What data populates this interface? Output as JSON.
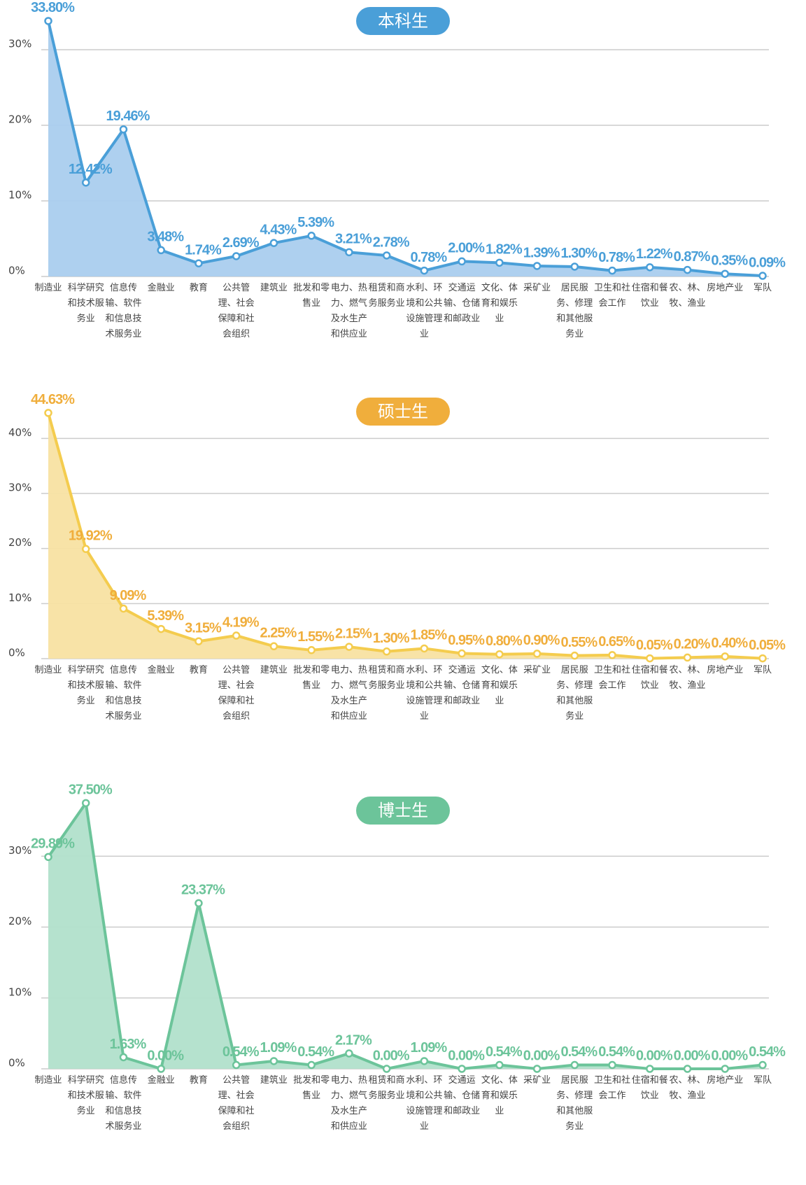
{
  "chart_data": [
    {
      "type": "line",
      "title": "本科生",
      "color": "#4a9fd8",
      "fill": "#aacdee",
      "label_color": "#4a9fd8",
      "categories": [
        "制造业",
        "科学研究和技术服务业",
        "信息传输、软件和信息技术服务业",
        "金融业",
        "教育",
        "公共管理、社会保障和社会组织",
        "建筑业",
        "批发和零售业",
        "电力、热力、燃气及水生产和供应业",
        "租赁和商务服务业",
        "水利、环境和公共设施管理业",
        "交通运输、仓储和邮政业",
        "文化、体育和娱乐业",
        "采矿业",
        "居民服务、修理和其他服务业",
        "卫生和社会工作",
        "住宿和餐饮业",
        "农、林、牧、渔业",
        "房地产业",
        "军队"
      ],
      "values": [
        33.8,
        12.42,
        19.46,
        3.48,
        1.74,
        2.69,
        4.43,
        5.39,
        3.21,
        2.78,
        0.78,
        2.0,
        1.82,
        1.39,
        1.3,
        0.78,
        1.22,
        0.87,
        0.35,
        0.09
      ],
      "value_labels": [
        "33.80%",
        "12.42%",
        "19.46%",
        "3.48%",
        "1.74%",
        "2.69%",
        "4.43%",
        "5.39%",
        "3.21%",
        "2.78%",
        "0.78%",
        "2.00%",
        "1.82%",
        "1.39%",
        "1.30%",
        "0.78%",
        "1.22%",
        "0.87%",
        "0.35%",
        "0.09%"
      ],
      "ylim": [
        0,
        35
      ],
      "yticks": [
        {
          "value": 0,
          "label": "0%"
        },
        {
          "value": 10,
          "label": "10%"
        },
        {
          "value": 20,
          "label": "20%"
        },
        {
          "value": 30,
          "label": "30%"
        }
      ],
      "grid": true
    },
    {
      "type": "line",
      "title": "硕士生",
      "color": "#f4cc4e",
      "fill": "#f8e1a2",
      "label_color": "#f0ae3c",
      "categories": [
        "制造业",
        "科学研究和技术服务业",
        "信息传输、软件和信息技术服务业",
        "金融业",
        "教育",
        "公共管理、社会保障和社会组织",
        "建筑业",
        "批发和零售业",
        "电力、热力、燃气及水生产和供应业",
        "租赁和商务服务业",
        "水利、环境和公共设施管理业",
        "交通运输、仓储和邮政业",
        "文化、体育和娱乐业",
        "采矿业",
        "居民服务、修理和其他服务业",
        "卫生和社会工作",
        "住宿和餐饮业",
        "农、林、牧、渔业",
        "房地产业",
        "军队"
      ],
      "values": [
        44.63,
        19.92,
        9.09,
        5.39,
        3.15,
        4.19,
        2.25,
        1.55,
        2.15,
        1.3,
        1.85,
        0.95,
        0.8,
        0.9,
        0.55,
        0.65,
        0.05,
        0.2,
        0.4,
        0.05
      ],
      "value_labels": [
        "44.63%",
        "19.92%",
        "9.09%",
        "5.39%",
        "3.15%",
        "4.19%",
        "2.25%",
        "1.55%",
        "2.15%",
        "1.30%",
        "1.85%",
        "0.95%",
        "0.80%",
        "0.90%",
        "0.55%",
        "0.65%",
        "0.05%",
        "0.20%",
        "0.40%",
        "0.05%"
      ],
      "ylim": [
        0,
        45
      ],
      "yticks": [
        {
          "value": 0,
          "label": "0%"
        },
        {
          "value": 10,
          "label": "10%"
        },
        {
          "value": 20,
          "label": "20%"
        },
        {
          "value": 30,
          "label": "30%"
        },
        {
          "value": 40,
          "label": "40%"
        }
      ],
      "grid": true
    },
    {
      "type": "line",
      "title": "博士生",
      "color": "#6cc49a",
      "fill": "#b1e0cb",
      "label_color": "#6cc49a",
      "categories": [
        "制造业",
        "科学研究和技术服务业",
        "信息传输、软件和信息技术服务业",
        "金融业",
        "教育",
        "公共管理、社会保障和社会组织",
        "建筑业",
        "批发和零售业",
        "电力、热力、燃气及水生产和供应业",
        "租赁和商务服务业",
        "水利、环境和公共设施管理业",
        "交通运输、仓储和邮政业",
        "文化、体育和娱乐业",
        "采矿业",
        "居民服务、修理和其他服务业",
        "卫生和社会工作",
        "住宿和餐饮业",
        "农、林、牧、渔业",
        "房地产业",
        "军队"
      ],
      "values": [
        29.89,
        37.5,
        1.63,
        0.0,
        23.37,
        0.54,
        1.09,
        0.54,
        2.17,
        0.0,
        1.09,
        0.0,
        0.54,
        0.0,
        0.54,
        0.54,
        0.0,
        0.0,
        0.0,
        0.54
      ],
      "value_labels": [
        "29.89%",
        "37.50%",
        "1.63%",
        "0.00%",
        "23.37%",
        "0.54%",
        "1.09%",
        "0.54%",
        "2.17%",
        "0.00%",
        "1.09%",
        "0.00%",
        "0.54%",
        "0.00%",
        "0.54%",
        "0.54%",
        "0.00%",
        "0.00%",
        "0.00%",
        "0.54%"
      ],
      "ylim": [
        0,
        40
      ],
      "yticks": [
        {
          "value": 0,
          "label": "0%"
        },
        {
          "value": 10,
          "label": "10%"
        },
        {
          "value": 20,
          "label": "20%"
        },
        {
          "value": 30,
          "label": "30%"
        }
      ],
      "grid": true
    }
  ]
}
